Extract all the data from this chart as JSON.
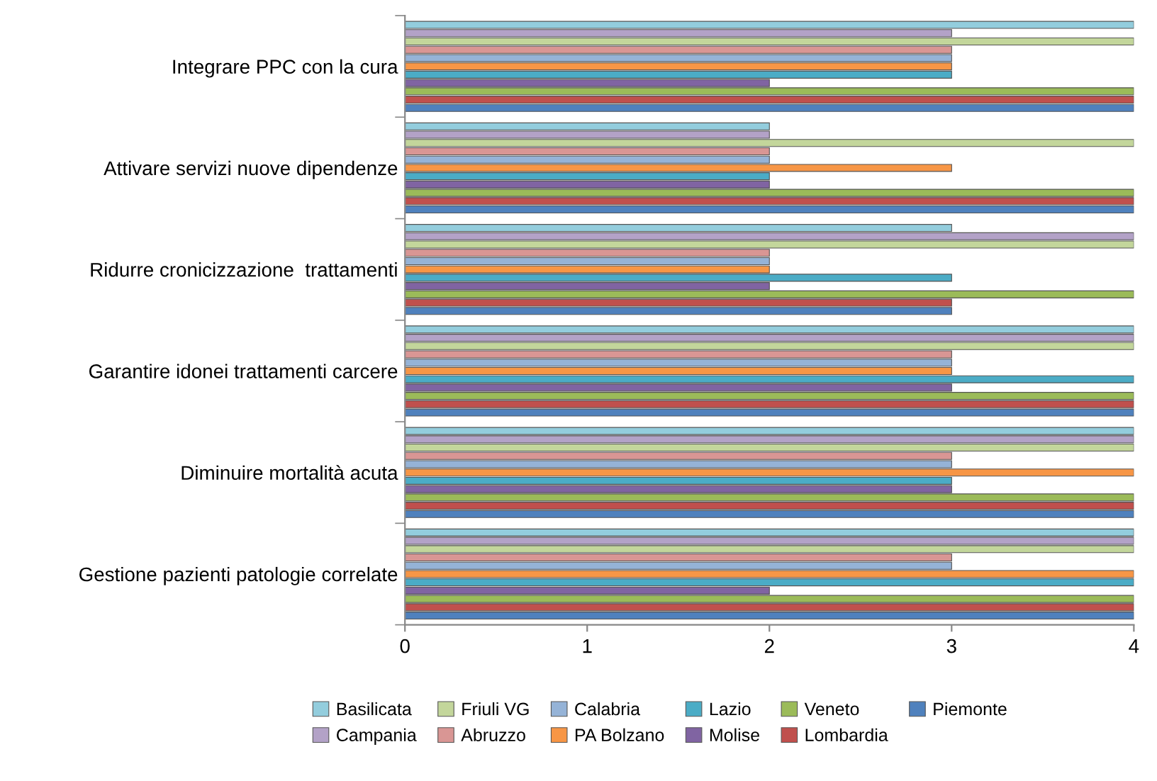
{
  "chart_data": {
    "type": "bar",
    "orientation": "horizontal",
    "categories": [
      "Integrare PPC con la cura",
      "Attivare servizi nuove dipendenze",
      "Ridurre cronicizzazione  trattamenti",
      "Garantire idonei trattamenti carcere",
      "Diminuire mortalità acuta",
      "Gestione pazienti patologie correlate"
    ],
    "series": [
      {
        "name": "Basilicata",
        "color": "#93cddd",
        "values": [
          4,
          2,
          3,
          4,
          4,
          4
        ]
      },
      {
        "name": "Campania",
        "color": "#b3a2c7",
        "values": [
          3,
          2,
          4,
          4,
          4,
          4
        ]
      },
      {
        "name": "Friuli VG",
        "color": "#c3d69b",
        "values": [
          4,
          4,
          4,
          4,
          4,
          4
        ]
      },
      {
        "name": "Abruzzo",
        "color": "#d99694",
        "values": [
          3,
          2,
          2,
          3,
          3,
          3
        ]
      },
      {
        "name": "Calabria",
        "color": "#95b3d7",
        "values": [
          3,
          2,
          2,
          3,
          3,
          3
        ]
      },
      {
        "name": "PA Bolzano",
        "color": "#f79646",
        "values": [
          3,
          3,
          2,
          3,
          4,
          4
        ]
      },
      {
        "name": "Lazio",
        "color": "#4bacc6",
        "values": [
          3,
          2,
          3,
          4,
          3,
          4
        ]
      },
      {
        "name": "Molise",
        "color": "#8064a2",
        "values": [
          2,
          2,
          2,
          3,
          3,
          2
        ]
      },
      {
        "name": "Veneto",
        "color": "#9bbb59",
        "values": [
          4,
          4,
          4,
          4,
          4,
          4
        ]
      },
      {
        "name": "Lombardia",
        "color": "#c0504d",
        "values": [
          4,
          4,
          3,
          4,
          4,
          4
        ]
      },
      {
        "name": "Piemonte",
        "color": "#4f81bd",
        "values": [
          4,
          4,
          3,
          4,
          4,
          4
        ]
      }
    ],
    "xlim": [
      0,
      4
    ],
    "xticks": [
      0,
      1,
      2,
      3,
      4
    ],
    "grid": false,
    "legend": "bottom"
  }
}
